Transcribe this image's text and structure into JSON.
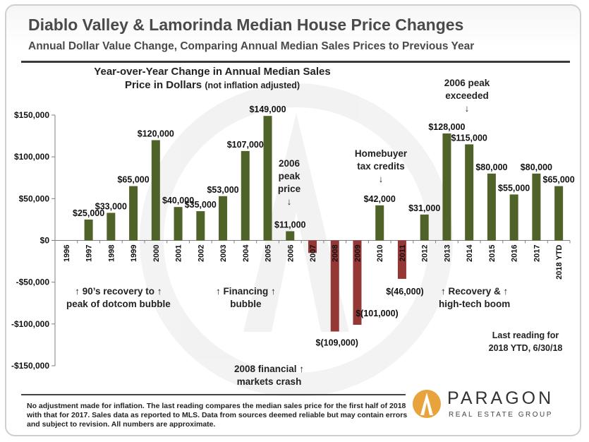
{
  "header": {
    "title": "Diablo Valley & Lamorinda Median House Price Changes",
    "subtitle": "Annual Dollar Value Change, Comparing Annual Median Sales Prices to Previous Year"
  },
  "chart_title": {
    "line1": "Year-over-Year Change in Annual Median Sales",
    "line2_main": "Price in Dollars",
    "line2_small": "(not inflation adjusted)"
  },
  "colors": {
    "positive": "#4f6228",
    "negative": "#953735",
    "axis": "#7f7f7f"
  },
  "chart_data": {
    "type": "bar",
    "categories": [
      "1996",
      "1997",
      "1998",
      "1999",
      "2000",
      "2001",
      "2002",
      "2003",
      "2004",
      "2005",
      "2006",
      "2007",
      "2008",
      "2009",
      "2010",
      "2011",
      "2012",
      "2013",
      "2014",
      "2015",
      "2016",
      "2017",
      "2018 YTD"
    ],
    "values": [
      0,
      25000,
      33000,
      65000,
      120000,
      40000,
      35000,
      53000,
      107000,
      149000,
      11000,
      -15000,
      -109000,
      -101000,
      42000,
      -46000,
      31000,
      128000,
      115000,
      80000,
      55000,
      80000,
      65000
    ],
    "data_labels": [
      "",
      "$25,000",
      "$33,000",
      "$65,000",
      "$120,000",
      "$40,000",
      "$35,000",
      "$53,000",
      "$107,000",
      "$149,000",
      "$11,000",
      "",
      "$(109,000)",
      "$(101,000)",
      "$42,000",
      "$(46,000)",
      "$31,000",
      "$128,000",
      "$115,000",
      "$80,000",
      "$55,000",
      "$80,000",
      "$65,000"
    ],
    "ylim": [
      -150000,
      150000
    ],
    "yticks": [
      "$150,000",
      "$100,000",
      "$50,000",
      "$0",
      "-$50,000",
      "-$100,000",
      "-$150,000"
    ],
    "ytick_values": [
      150000,
      100000,
      50000,
      0,
      -50000,
      -100000,
      -150000
    ],
    "grid": false
  },
  "annotations": {
    "recovery_90s": "↑  90’s recovery to  ↑\npeak of dotcom bubble",
    "financing": "↑  Financing  ↑\nbubble",
    "peak_2006": "2006\npeak\nprice\n↓",
    "tax_credits": "Homebuyer\ntax credits\n↓",
    "peak_exceeded": "2006 peak\nexceeded\n↓",
    "recovery_tech": "↑      Recovery &      ↑\nhigh-tech boom",
    "crash_2008": "2008 financial  ↑\nmarkets crash",
    "last_reading": "Last reading for\n2018 YTD, 6/30/18"
  },
  "footnote": "No adjustment made for inflation. The last reading compares the median sales price for the first half of 2018 with that for 2017. Sales data as reported to MLS. Data from sources deemed reliable but may contain errors and subject to revision. All numbers are approximate.",
  "logo": {
    "name": "PARAGON",
    "tagline": "REAL ESTATE GROUP"
  }
}
